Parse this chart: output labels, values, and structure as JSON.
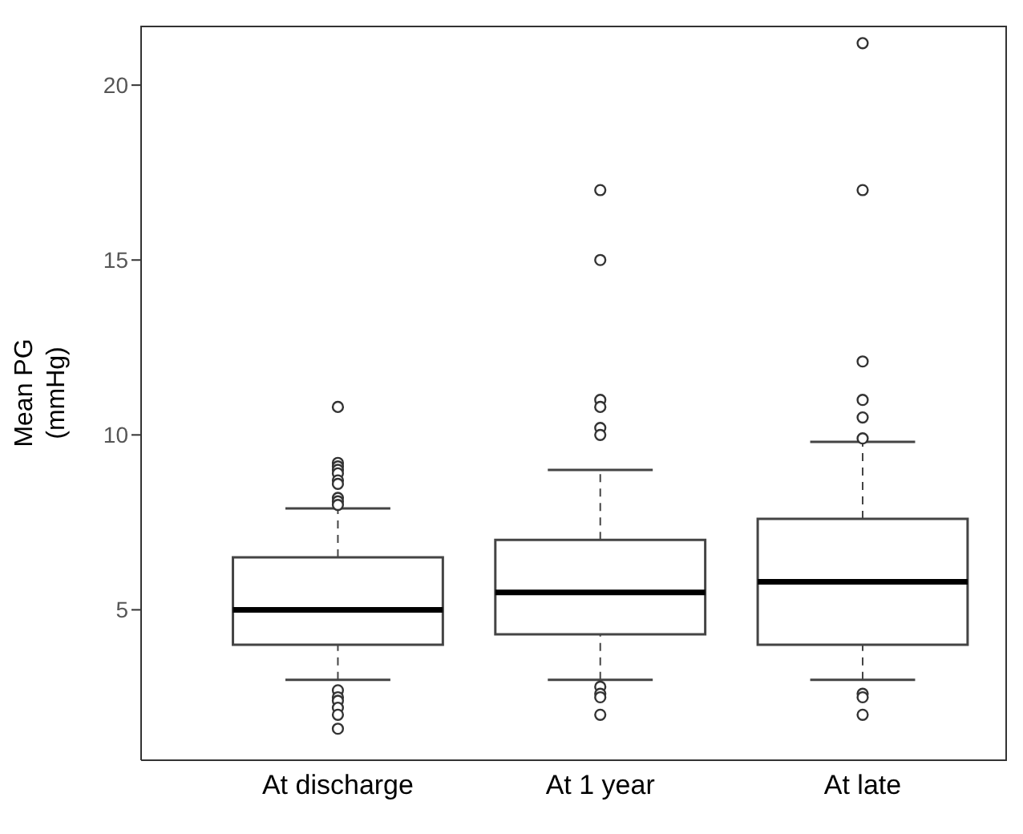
{
  "chart_data": {
    "type": "box",
    "ylabel": "Mean PG\n(mmHg)",
    "categories": [
      "At discharge",
      "At 1 year",
      "At late"
    ],
    "boxes": [
      {
        "low": 3.0,
        "q1": 4.0,
        "median": 5.0,
        "q3": 6.5,
        "high": 7.9,
        "outliers": [
          10.8,
          9.2,
          9.1,
          9.0,
          8.9,
          8.7,
          8.6,
          8.2,
          8.1,
          8.0,
          2.7,
          2.5,
          2.4,
          2.2,
          2.0,
          1.6
        ]
      },
      {
        "low": 3.0,
        "q1": 4.3,
        "median": 5.5,
        "q3": 7.0,
        "high": 9.0,
        "outliers": [
          17.0,
          15.0,
          11.0,
          10.8,
          10.2,
          10.0,
          2.8,
          2.6,
          2.5,
          2.0
        ]
      },
      {
        "low": 3.0,
        "q1": 4.0,
        "median": 5.8,
        "q3": 7.6,
        "high": 9.8,
        "outliers": [
          21.2,
          17.0,
          12.1,
          11.0,
          10.5,
          9.9,
          2.6,
          2.5,
          2.0
        ]
      }
    ],
    "ylim": [
      0.7,
      21.7
    ],
    "yticks": [
      5,
      10,
      15,
      20
    ],
    "marker": "circle"
  }
}
